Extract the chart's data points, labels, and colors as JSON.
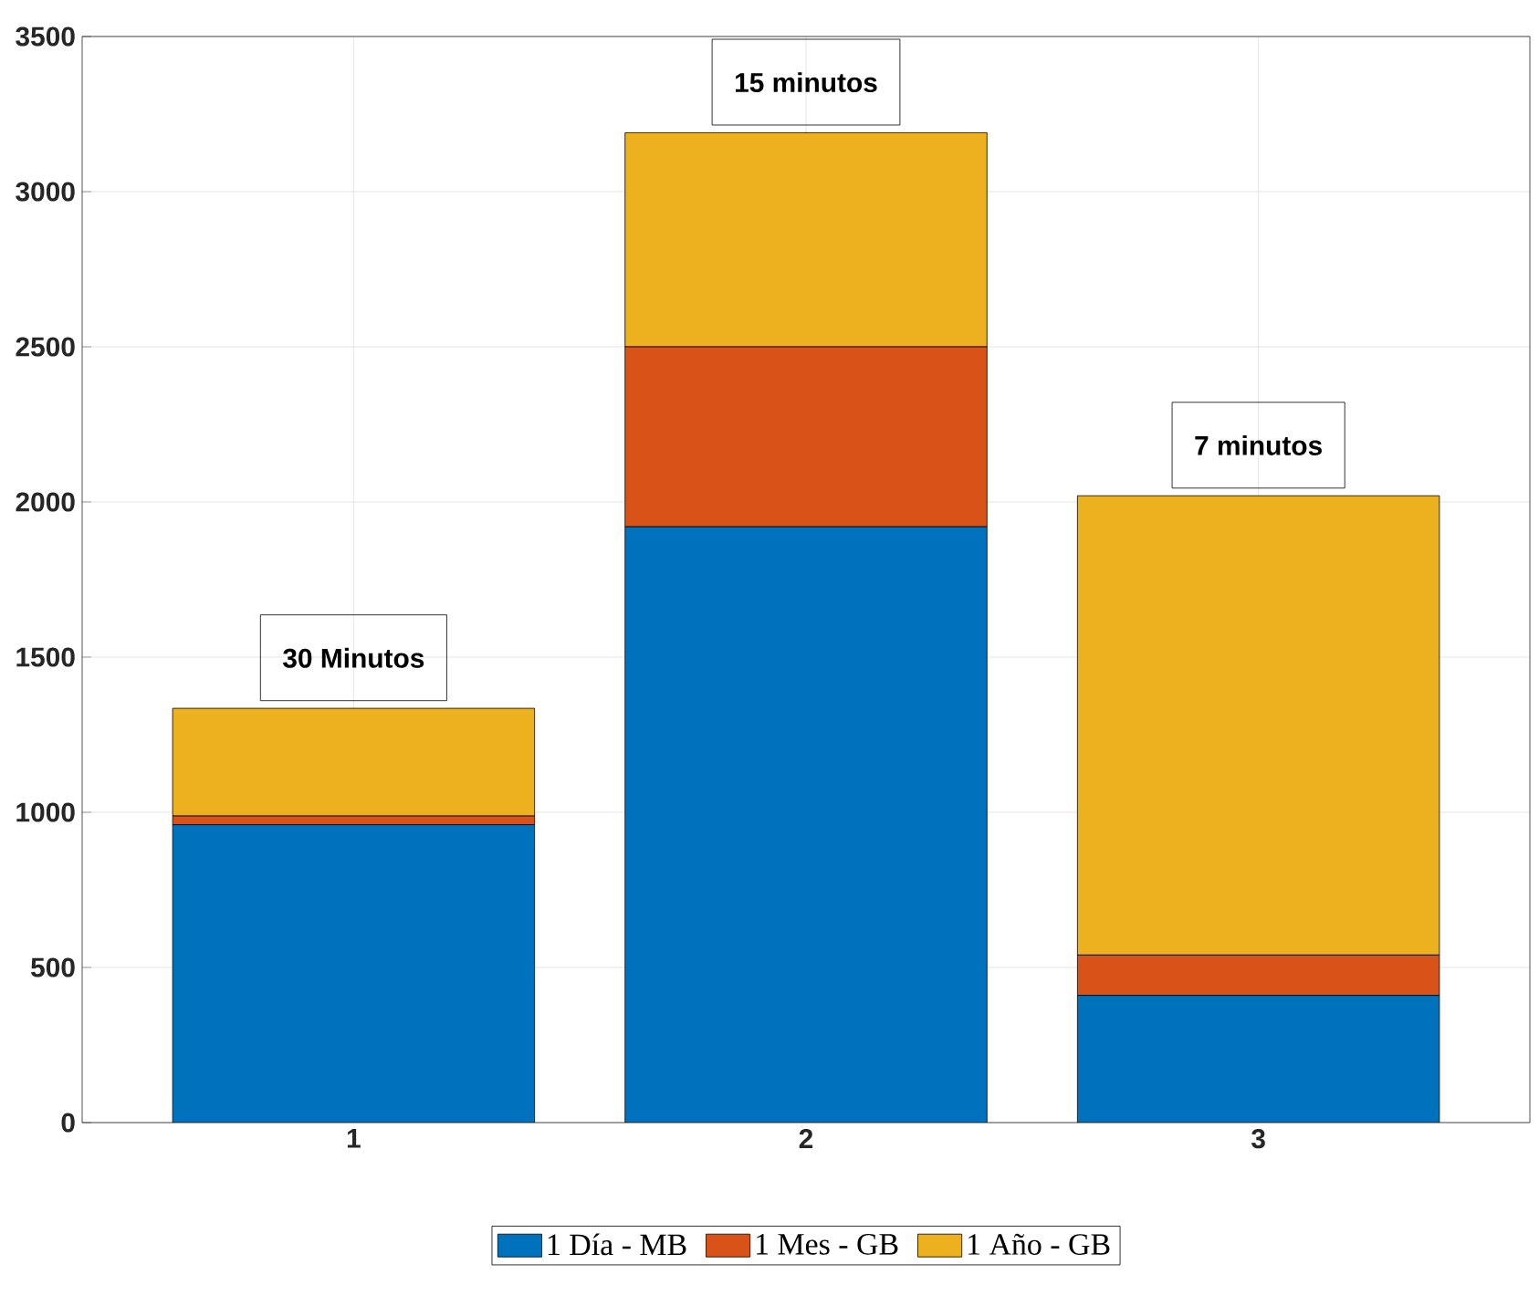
{
  "chart_data": {
    "type": "bar",
    "stacked": true,
    "categories": [
      "1",
      "2",
      "3"
    ],
    "series": [
      {
        "name": "1 Día - MB",
        "color": "#0072bd",
        "values": [
          960,
          1920,
          410
        ]
      },
      {
        "name": "1 Mes - GB",
        "color": "#d95319",
        "values": [
          28,
          580,
          130
        ]
      },
      {
        "name": "1 Año - GB",
        "color": "#edb120",
        "values": [
          347,
          690,
          1480
        ]
      }
    ],
    "ylim": [
      0,
      3500
    ],
    "yticks": [
      0,
      500,
      1000,
      1500,
      2000,
      2500,
      3000,
      3500
    ],
    "grid": true,
    "legend": "bottom",
    "annotations": [
      "30 Minutos",
      "15 minutos",
      "7 minutos"
    ]
  }
}
